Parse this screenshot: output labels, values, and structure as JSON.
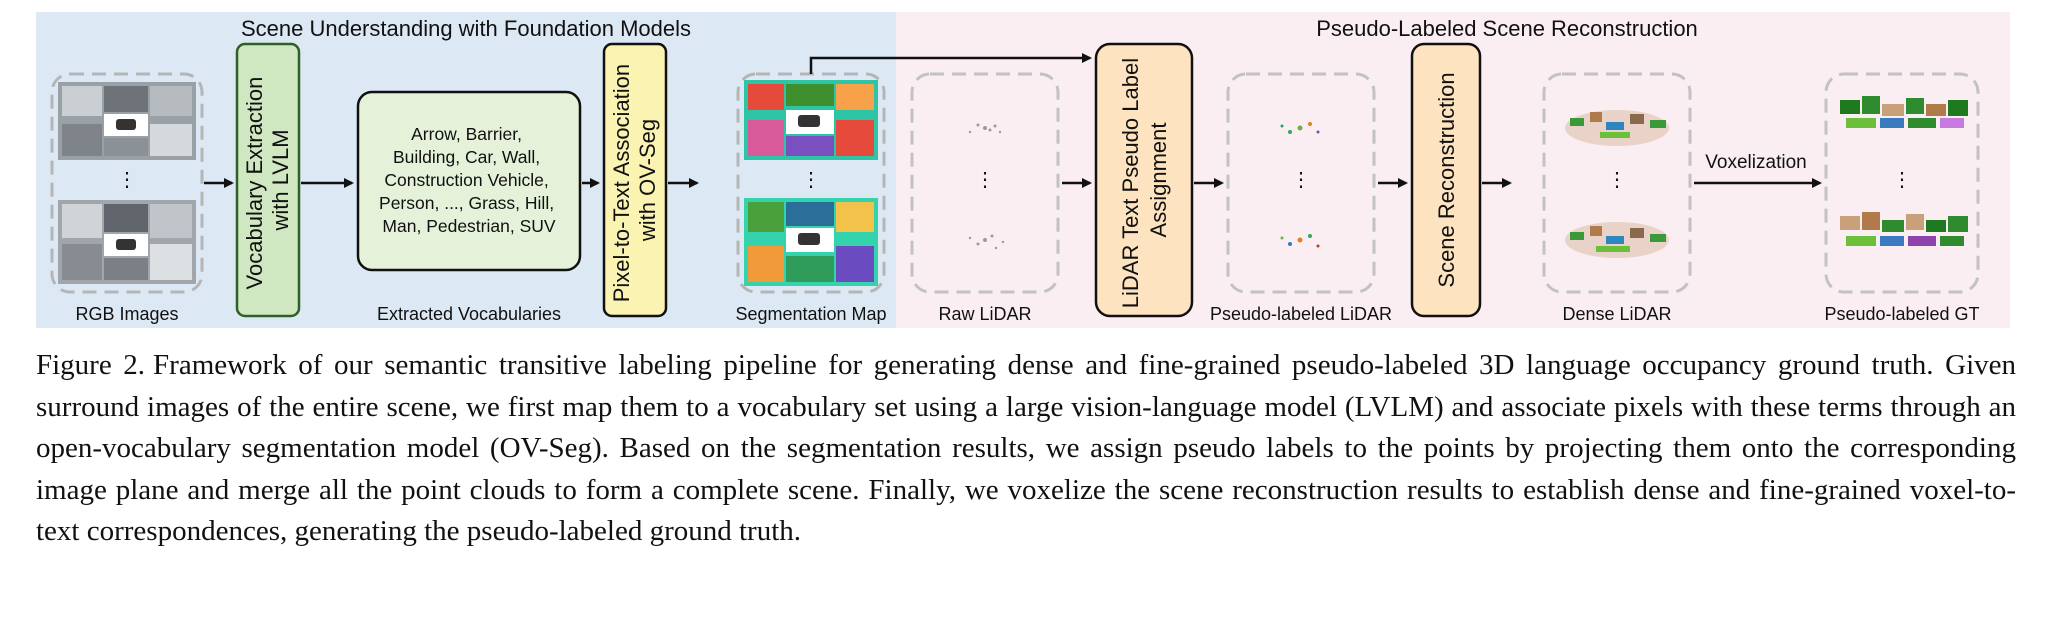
{
  "sections": {
    "left_title": "Scene Understanding with Foundation Models",
    "right_title": "Pseudo-Labeled Scene Reconstruction"
  },
  "stages": {
    "rgb_images": "RGB Images",
    "vocab_extraction": [
      "Vocabulary Extraction",
      "with LVLM"
    ],
    "extracted_vocab_label": "Extracted Vocabularies",
    "vocab_list": [
      "Arrow, Barrier,",
      "Building, Car, Wall,",
      "Construction Vehicle,",
      "Person, ..., Grass, Hill,",
      "Man, Pedestrian, SUV"
    ],
    "pixel_text": [
      "Pixel-to-Text Association",
      "with OV-Seg"
    ],
    "segmentation_map": "Segmentation Map",
    "raw_lidar": "Raw LiDAR",
    "lidar_text": [
      "LiDAR Text Pseudo Label",
      "Assignment"
    ],
    "pseudo_lidar": "Pseudo-labeled LiDAR",
    "scene_recon": "Scene Reconstruction",
    "dense_lidar": "Dense LiDAR",
    "voxelization": "Voxelization",
    "pseudo_gt": "Pseudo-labeled GT",
    "ellipsis": "⋮"
  },
  "colors": {
    "left_bg": "#dce9f5",
    "right_bg": "#fbeef3",
    "green_box": "#cfe8c2",
    "green_border": "#2f5e27",
    "vocab_box": "#e6f1da",
    "yellow_box": "#fbf3b2",
    "orange_box": "#fde3c0",
    "dashed": "#b5b5b5"
  },
  "caption": {
    "lead": "Figure 2.",
    "text": "Framework of our semantic transitive labeling pipeline for generating dense and fine-grained pseudo-labeled 3D language occupancy ground truth. Given surround images of the entire scene, we first map them to a vocabulary set using a large vision-language model (LVLM) and associate pixels with these terms through an open-vocabulary segmentation model (OV-Seg). Based on the segmentation results, we assign pseudo labels to the points by projecting them onto the corresponding image plane and merge all the point clouds to form a complete scene. Finally, we voxelize the scene reconstruction results to establish dense and fine-grained voxel-to-text correspondences, generating the pseudo-labeled ground truth."
  }
}
